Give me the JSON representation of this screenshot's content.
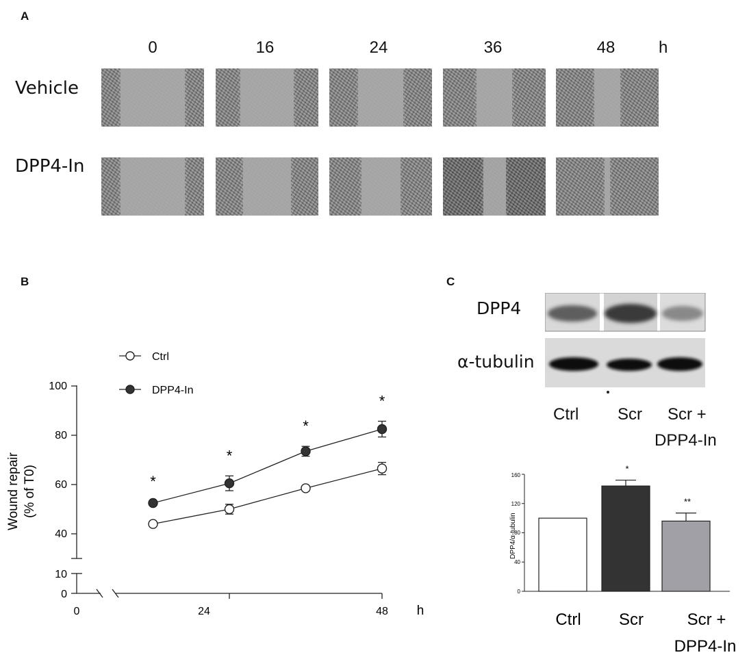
{
  "panelA": {
    "letter": "A",
    "timepoints": [
      "0",
      "16",
      "24",
      "36",
      "48"
    ],
    "time_unit": "h",
    "rows": [
      "Vehicle",
      "DPP4-In"
    ],
    "gap_fraction": [
      [
        0.63,
        0.52,
        0.44,
        0.35,
        0.25
      ],
      [
        0.63,
        0.47,
        0.38,
        0.22,
        0.05
      ]
    ]
  },
  "panelB": {
    "letter": "B",
    "legend": [
      {
        "label": "Ctrl",
        "marker": "open"
      },
      {
        "label": "DPP4-In",
        "marker": "filled"
      }
    ],
    "ylabel_line1": "Wound repair",
    "ylabel_line2": "(% of T0)",
    "x_unit": "h",
    "y_ticks_upper": [
      "100",
      "80",
      "60",
      "40"
    ],
    "y_ticks_lower": [
      "10",
      "0"
    ],
    "x_ticks": [
      "0",
      "24",
      "48"
    ],
    "significance": [
      "*",
      "*",
      "*",
      "*"
    ]
  },
  "panelC": {
    "letter": "C",
    "blot_rows": [
      "DPP4",
      "α-tubulin"
    ],
    "lane_labels": [
      "Ctrl",
      "Scr",
      "Scr +",
      "DPP4-In"
    ],
    "bar_ylabel": "DPP4/α-tubulin",
    "bar_y_ticks": [
      "160",
      "120",
      "80",
      "40",
      "0"
    ],
    "bar_categories": [
      "Ctrl",
      "Scr",
      "Scr +",
      "DPP4-In"
    ],
    "significance": [
      "*",
      "**"
    ]
  },
  "chart_data": [
    {
      "type": "line",
      "x": [
        12,
        24,
        36,
        48
      ],
      "xlim": [
        0,
        48
      ],
      "ylim": [
        0,
        100
      ],
      "y_axis_break": [
        10,
        30
      ],
      "x_axis_break": true,
      "series": [
        {
          "name": "Ctrl",
          "values": [
            44,
            50,
            58.5,
            66.5
          ],
          "errors": [
            0.6,
            2,
            0.8,
            2.5
          ],
          "marker": "open-circle",
          "color": "#ffffff"
        },
        {
          "name": "DPP4-In",
          "values": [
            52.5,
            60.5,
            73.5,
            82.5
          ],
          "errors": [
            0.6,
            3,
            2,
            3.2
          ],
          "marker": "filled-circle",
          "color": "#333333"
        }
      ],
      "ylabel": "Wound repair (% of T0)",
      "xlabel": "h",
      "annotations": [
        "*",
        "*",
        "*",
        "*"
      ]
    },
    {
      "type": "bar",
      "categories": [
        "Ctrl",
        "Scr",
        "Scr + DPP4-In"
      ],
      "values": [
        100,
        144,
        96
      ],
      "errors": [
        0,
        8,
        11
      ],
      "colors": [
        "#ffffff",
        "#333333",
        "#a0a0a6"
      ],
      "ylim": [
        0,
        160
      ],
      "ylabel": "DPP4/α-tubulin",
      "annotations": [
        "",
        "*",
        "**"
      ]
    }
  ]
}
